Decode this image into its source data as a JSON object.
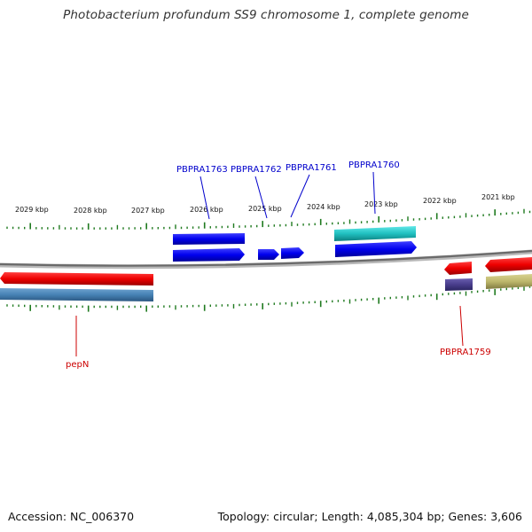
{
  "title": "Photobacterium profundum SS9 chromosome 1, complete genome",
  "footer": {
    "accession": "Accession: NC_006370",
    "topology": "Topology: circular; Length: 4,085,304 bp; Genes: 3,606"
  },
  "colors": {
    "backbone": "#808080",
    "tick": "#1f7a1f",
    "forward_gene": "#0000ee",
    "reverse_gene": "#ee0000",
    "forward_label": "#0000cc",
    "reverse_label": "#cc0000",
    "cyan_feature": "#20c0c0",
    "steelblue_feature": "#4682b4",
    "purple_feature": "#483d8b",
    "khaki_feature": "#bdb76b"
  },
  "ruler": {
    "tick_labels": [
      "2029 kbp",
      "2028 kbp",
      "2027 kbp",
      "2026 kbp",
      "2025 kbp",
      "2024 kbp",
      "2023 kbp",
      "2022 kbp",
      "2021 kbp"
    ]
  },
  "gene_labels": {
    "PBPRA1763": "PBPRA1763",
    "PBPRA1762": "PBPRA1762",
    "PBPRA1761": "PBPRA1761",
    "PBPRA1760": "PBPRA1760",
    "pepN": "pepN",
    "PBPRA1759": "PBPRA1759"
  }
}
